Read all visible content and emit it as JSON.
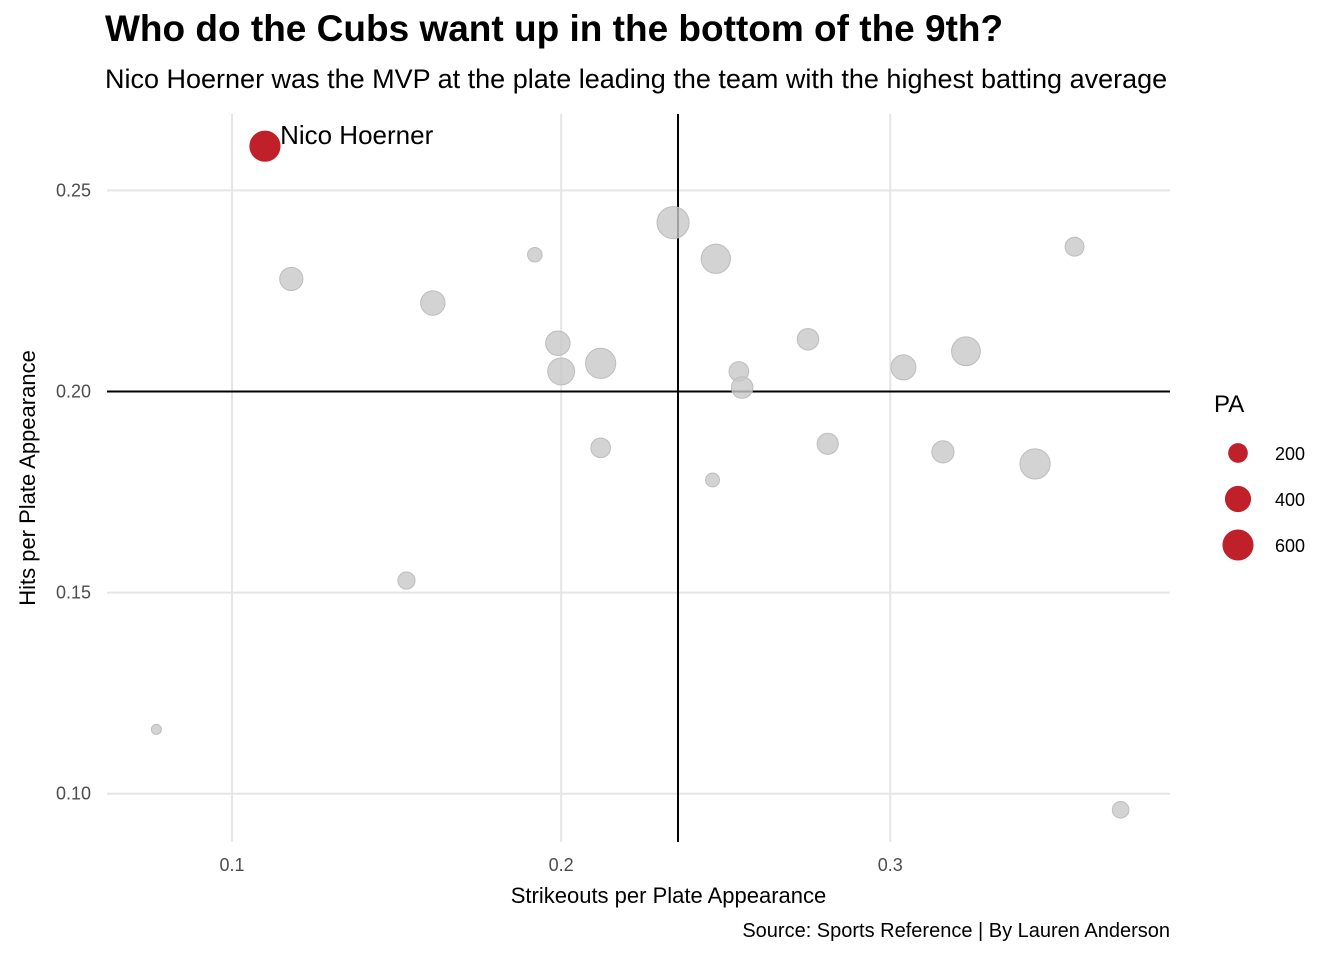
{
  "chart_data": {
    "type": "scatter",
    "title": "Who do the Cubs want up in the bottom of the 9th?",
    "subtitle": "Nico Hoerner was the MVP at the plate leading the team with the highest batting average",
    "xlabel": "Strikeouts per Plate Appearance",
    "ylabel": "Hits per Plate Appearance",
    "caption": "Source: Sports Reference | By Lauren Anderson",
    "xlim": [
      0.062,
      0.385
    ],
    "ylim": [
      0.088,
      0.269
    ],
    "x_ticks": [
      0.1,
      0.2,
      0.3
    ],
    "x_tick_labels": [
      "0.1",
      "0.2",
      "0.3"
    ],
    "y_ticks": [
      0.1,
      0.15,
      0.2,
      0.25
    ],
    "y_tick_labels": [
      "0.10",
      "0.15",
      "0.20",
      "0.25"
    ],
    "grid": true,
    "reference_lines": {
      "x": 0.2355,
      "y": 0.2
    },
    "size_legend": {
      "title": "PA",
      "entries": [
        {
          "label": "200",
          "value": 200
        },
        {
          "label": "400",
          "value": 400
        },
        {
          "label": "600",
          "value": 600
        }
      ]
    },
    "colors": {
      "highlight": "#c0202a",
      "other": "#c8c8c8",
      "grid": "#e5e5e5",
      "reference": "#000000"
    },
    "points": [
      {
        "x": 0.11,
        "y": 0.261,
        "pa": 560,
        "highlight": true,
        "label": "Nico Hoerner"
      },
      {
        "x": 0.234,
        "y": 0.242,
        "pa": 640,
        "highlight": false
      },
      {
        "x": 0.247,
        "y": 0.233,
        "pa": 520,
        "highlight": false
      },
      {
        "x": 0.192,
        "y": 0.234,
        "pa": 90,
        "highlight": false
      },
      {
        "x": 0.356,
        "y": 0.236,
        "pa": 180,
        "highlight": false
      },
      {
        "x": 0.118,
        "y": 0.228,
        "pa": 300,
        "highlight": false
      },
      {
        "x": 0.161,
        "y": 0.222,
        "pa": 340,
        "highlight": false
      },
      {
        "x": 0.199,
        "y": 0.212,
        "pa": 340,
        "highlight": false
      },
      {
        "x": 0.2,
        "y": 0.205,
        "pa": 430,
        "highlight": false
      },
      {
        "x": 0.212,
        "y": 0.207,
        "pa": 560,
        "highlight": false
      },
      {
        "x": 0.254,
        "y": 0.205,
        "pa": 200,
        "highlight": false
      },
      {
        "x": 0.255,
        "y": 0.201,
        "pa": 250,
        "highlight": false
      },
      {
        "x": 0.275,
        "y": 0.213,
        "pa": 250,
        "highlight": false
      },
      {
        "x": 0.304,
        "y": 0.206,
        "pa": 360,
        "highlight": false
      },
      {
        "x": 0.323,
        "y": 0.21,
        "pa": 500,
        "highlight": false
      },
      {
        "x": 0.212,
        "y": 0.186,
        "pa": 200,
        "highlight": false
      },
      {
        "x": 0.246,
        "y": 0.178,
        "pa": 80,
        "highlight": false
      },
      {
        "x": 0.281,
        "y": 0.187,
        "pa": 240,
        "highlight": false
      },
      {
        "x": 0.316,
        "y": 0.185,
        "pa": 270,
        "highlight": false
      },
      {
        "x": 0.344,
        "y": 0.182,
        "pa": 560,
        "highlight": false
      },
      {
        "x": 0.153,
        "y": 0.153,
        "pa": 140,
        "highlight": false
      },
      {
        "x": 0.077,
        "y": 0.116,
        "pa": 30,
        "highlight": false
      },
      {
        "x": 0.37,
        "y": 0.096,
        "pa": 130,
        "highlight": false
      }
    ]
  }
}
